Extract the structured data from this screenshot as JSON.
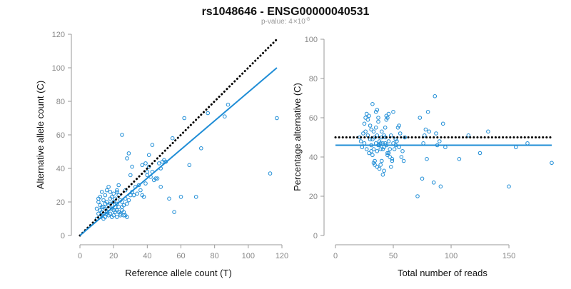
{
  "title": "rs1048646 - ENSG00000040531",
  "subtitle": {
    "prefix": "p-value: 4",
    "times": "×",
    "base": "10",
    "exponent": "-8"
  },
  "colors": {
    "points": "#1f8dd6",
    "fit": "#1f8dd6",
    "reference": "#000000",
    "axis": "#999999"
  },
  "chart_data": [
    {
      "type": "scatter",
      "xlabel": "Reference allele count (T)",
      "ylabel": "Alternative allele count (C)",
      "xlim": [
        0,
        120
      ],
      "ylim": [
        0,
        120
      ],
      "xticks": [
        0,
        20,
        40,
        60,
        80,
        100,
        120
      ],
      "yticks": [
        0,
        20,
        40,
        60,
        80,
        100,
        120
      ],
      "grid": false,
      "lines": [
        {
          "style": "dotted",
          "color": "#000000",
          "x": [
            0,
            117
          ],
          "y": [
            0,
            117
          ]
        },
        {
          "style": "solid",
          "color": "#1f8dd6",
          "x": [
            0,
            117
          ],
          "y": [
            0,
            100
          ]
        }
      ],
      "points": [
        [
          10,
          10
        ],
        [
          11,
          13
        ],
        [
          12,
          11
        ],
        [
          12,
          15
        ],
        [
          13,
          12
        ],
        [
          13,
          17
        ],
        [
          14,
          10
        ],
        [
          14,
          13
        ],
        [
          15,
          16
        ],
        [
          15,
          11
        ],
        [
          16,
          20
        ],
        [
          16,
          14
        ],
        [
          17,
          12
        ],
        [
          17,
          18
        ],
        [
          18,
          13
        ],
        [
          18,
          22
        ],
        [
          19,
          16
        ],
        [
          19,
          11
        ],
        [
          20,
          12
        ],
        [
          20,
          15
        ],
        [
          21,
          14
        ],
        [
          22,
          19
        ],
        [
          22,
          11
        ],
        [
          23,
          17
        ],
        [
          24,
          13
        ],
        [
          25,
          15
        ],
        [
          26,
          12
        ],
        [
          14,
          21
        ],
        [
          15,
          24
        ],
        [
          16,
          27
        ],
        [
          17,
          29
        ],
        [
          18,
          26
        ],
        [
          19,
          23
        ],
        [
          20,
          25
        ],
        [
          21,
          22
        ],
        [
          22,
          27
        ],
        [
          23,
          30
        ],
        [
          12,
          23
        ],
        [
          11,
          20
        ],
        [
          13,
          26
        ],
        [
          10,
          16
        ],
        [
          11,
          22
        ],
        [
          12,
          18
        ],
        [
          13,
          14
        ],
        [
          14,
          17
        ],
        [
          15,
          19
        ],
        [
          16,
          13
        ],
        [
          17,
          16
        ],
        [
          18,
          19
        ],
        [
          19,
          18
        ],
        [
          20,
          20
        ],
        [
          21,
          17
        ],
        [
          22,
          15
        ],
        [
          23,
          14
        ],
        [
          24,
          12
        ],
        [
          25,
          20
        ],
        [
          26,
          18
        ],
        [
          27,
          22
        ],
        [
          28,
          19
        ],
        [
          29,
          21
        ],
        [
          30,
          24
        ],
        [
          31,
          26
        ],
        [
          32,
          24
        ],
        [
          34,
          25
        ],
        [
          36,
          27
        ],
        [
          37,
          24
        ],
        [
          38,
          23
        ],
        [
          39,
          31
        ],
        [
          40,
          36
        ],
        [
          40,
          38
        ],
        [
          41,
          41
        ],
        [
          42,
          35
        ],
        [
          43,
          38
        ],
        [
          44,
          33
        ],
        [
          45,
          34
        ],
        [
          46,
          34
        ],
        [
          48,
          40
        ],
        [
          50,
          45
        ],
        [
          27,
          27
        ],
        [
          28,
          46
        ],
        [
          29,
          49
        ],
        [
          25,
          60
        ],
        [
          22,
          26
        ],
        [
          23,
          24
        ],
        [
          24,
          21
        ],
        [
          25,
          17
        ],
        [
          26,
          14
        ],
        [
          27,
          12
        ],
        [
          28,
          11
        ],
        [
          30,
          36
        ],
        [
          31,
          41
        ],
        [
          33,
          29
        ],
        [
          35,
          30
        ],
        [
          37,
          42
        ],
        [
          39,
          43
        ],
        [
          41,
          48
        ],
        [
          43,
          54
        ],
        [
          47,
          43
        ],
        [
          48,
          29
        ],
        [
          49,
          44
        ],
        [
          51,
          44
        ],
        [
          53,
          22
        ],
        [
          55,
          58
        ],
        [
          56,
          14
        ],
        [
          60,
          23
        ],
        [
          62,
          70
        ],
        [
          65,
          42
        ],
        [
          69,
          23
        ],
        [
          72,
          52
        ],
        [
          76,
          73
        ],
        [
          86,
          71
        ],
        [
          88,
          78
        ],
        [
          113,
          37
        ],
        [
          117,
          70
        ]
      ]
    },
    {
      "type": "scatter",
      "xlabel": "Total number of reads",
      "ylabel": "Percentage alternative (C)",
      "xlim": [
        0,
        187
      ],
      "ylim": [
        0,
        100
      ],
      "xticks": [
        0,
        50,
        100,
        150
      ],
      "yticks": [
        0,
        20,
        40,
        60,
        80,
        100
      ],
      "grid": false,
      "lines": [
        {
          "style": "dotted",
          "color": "#000000",
          "x": [
            0,
            187
          ],
          "y": [
            50,
            50
          ]
        },
        {
          "style": "solid",
          "color": "#1f8dd6",
          "x": [
            0,
            187
          ],
          "y": [
            46,
            46
          ]
        }
      ],
      "points": [
        [
          21,
          50
        ],
        [
          22,
          48
        ],
        [
          23,
          45
        ],
        [
          24,
          52
        ],
        [
          25,
          47
        ],
        [
          26,
          53
        ],
        [
          27,
          44
        ],
        [
          28,
          51
        ],
        [
          29,
          42
        ],
        [
          30,
          56
        ],
        [
          30,
          49
        ],
        [
          31,
          46
        ],
        [
          31,
          54
        ],
        [
          32,
          41
        ],
        [
          32,
          49
        ],
        [
          33,
          53
        ],
        [
          33,
          44
        ],
        [
          34,
          50
        ],
        [
          34,
          38
        ],
        [
          35,
          47
        ],
        [
          35,
          55
        ],
        [
          36,
          43
        ],
        [
          36,
          51
        ],
        [
          37,
          46
        ],
        [
          37,
          58
        ],
        [
          38,
          34
        ],
        [
          38,
          48
        ],
        [
          39,
          44
        ],
        [
          40,
          50
        ],
        [
          40,
          38
        ],
        [
          41,
          47
        ],
        [
          42,
          45
        ],
        [
          42,
          33
        ],
        [
          43,
          50
        ],
        [
          44,
          46
        ],
        [
          44,
          61
        ],
        [
          45,
          42
        ],
        [
          46,
          48
        ],
        [
          46,
          62
        ],
        [
          47,
          44
        ],
        [
          48,
          51
        ],
        [
          49,
          39
        ],
        [
          50,
          47
        ],
        [
          50,
          63
        ],
        [
          51,
          44
        ],
        [
          52,
          49
        ],
        [
          53,
          48
        ],
        [
          54,
          55
        ],
        [
          55,
          45
        ],
        [
          56,
          52
        ],
        [
          57,
          40
        ],
        [
          58,
          43
        ],
        [
          59,
          38
        ],
        [
          60,
          50
        ],
        [
          25,
          57
        ],
        [
          26,
          60
        ],
        [
          27,
          62
        ],
        [
          28,
          59
        ],
        [
          29,
          61
        ],
        [
          32,
          67
        ],
        [
          35,
          63
        ],
        [
          36,
          64
        ],
        [
          37,
          60
        ],
        [
          39,
          47
        ],
        [
          40,
          53
        ],
        [
          41,
          44
        ],
        [
          42,
          51
        ],
        [
          43,
          47
        ],
        [
          44,
          59
        ],
        [
          45,
          41
        ],
        [
          46,
          42
        ],
        [
          47,
          40
        ],
        [
          48,
          35
        ],
        [
          34,
          36
        ],
        [
          31,
          43
        ],
        [
          33,
          37
        ],
        [
          36,
          35
        ],
        [
          38,
          46
        ],
        [
          39,
          36
        ],
        [
          41,
          31
        ],
        [
          43,
          55
        ],
        [
          45,
          60
        ],
        [
          49,
          38
        ],
        [
          52,
          46
        ],
        [
          55,
          56
        ],
        [
          71,
          20
        ],
        [
          73,
          60
        ],
        [
          75,
          29
        ],
        [
          76,
          47
        ],
        [
          77,
          51
        ],
        [
          78,
          54
        ],
        [
          79,
          39
        ],
        [
          80,
          63
        ],
        [
          81,
          53
        ],
        [
          85,
          27
        ],
        [
          86,
          71
        ],
        [
          87,
          52
        ],
        [
          88,
          46
        ],
        [
          90,
          48
        ],
        [
          91,
          25
        ],
        [
          93,
          57
        ],
        [
          95,
          45
        ],
        [
          107,
          39
        ],
        [
          115,
          51
        ],
        [
          125,
          42
        ],
        [
          132,
          53
        ],
        [
          150,
          25
        ],
        [
          156,
          45
        ],
        [
          166,
          47
        ],
        [
          187,
          37
        ]
      ]
    }
  ]
}
